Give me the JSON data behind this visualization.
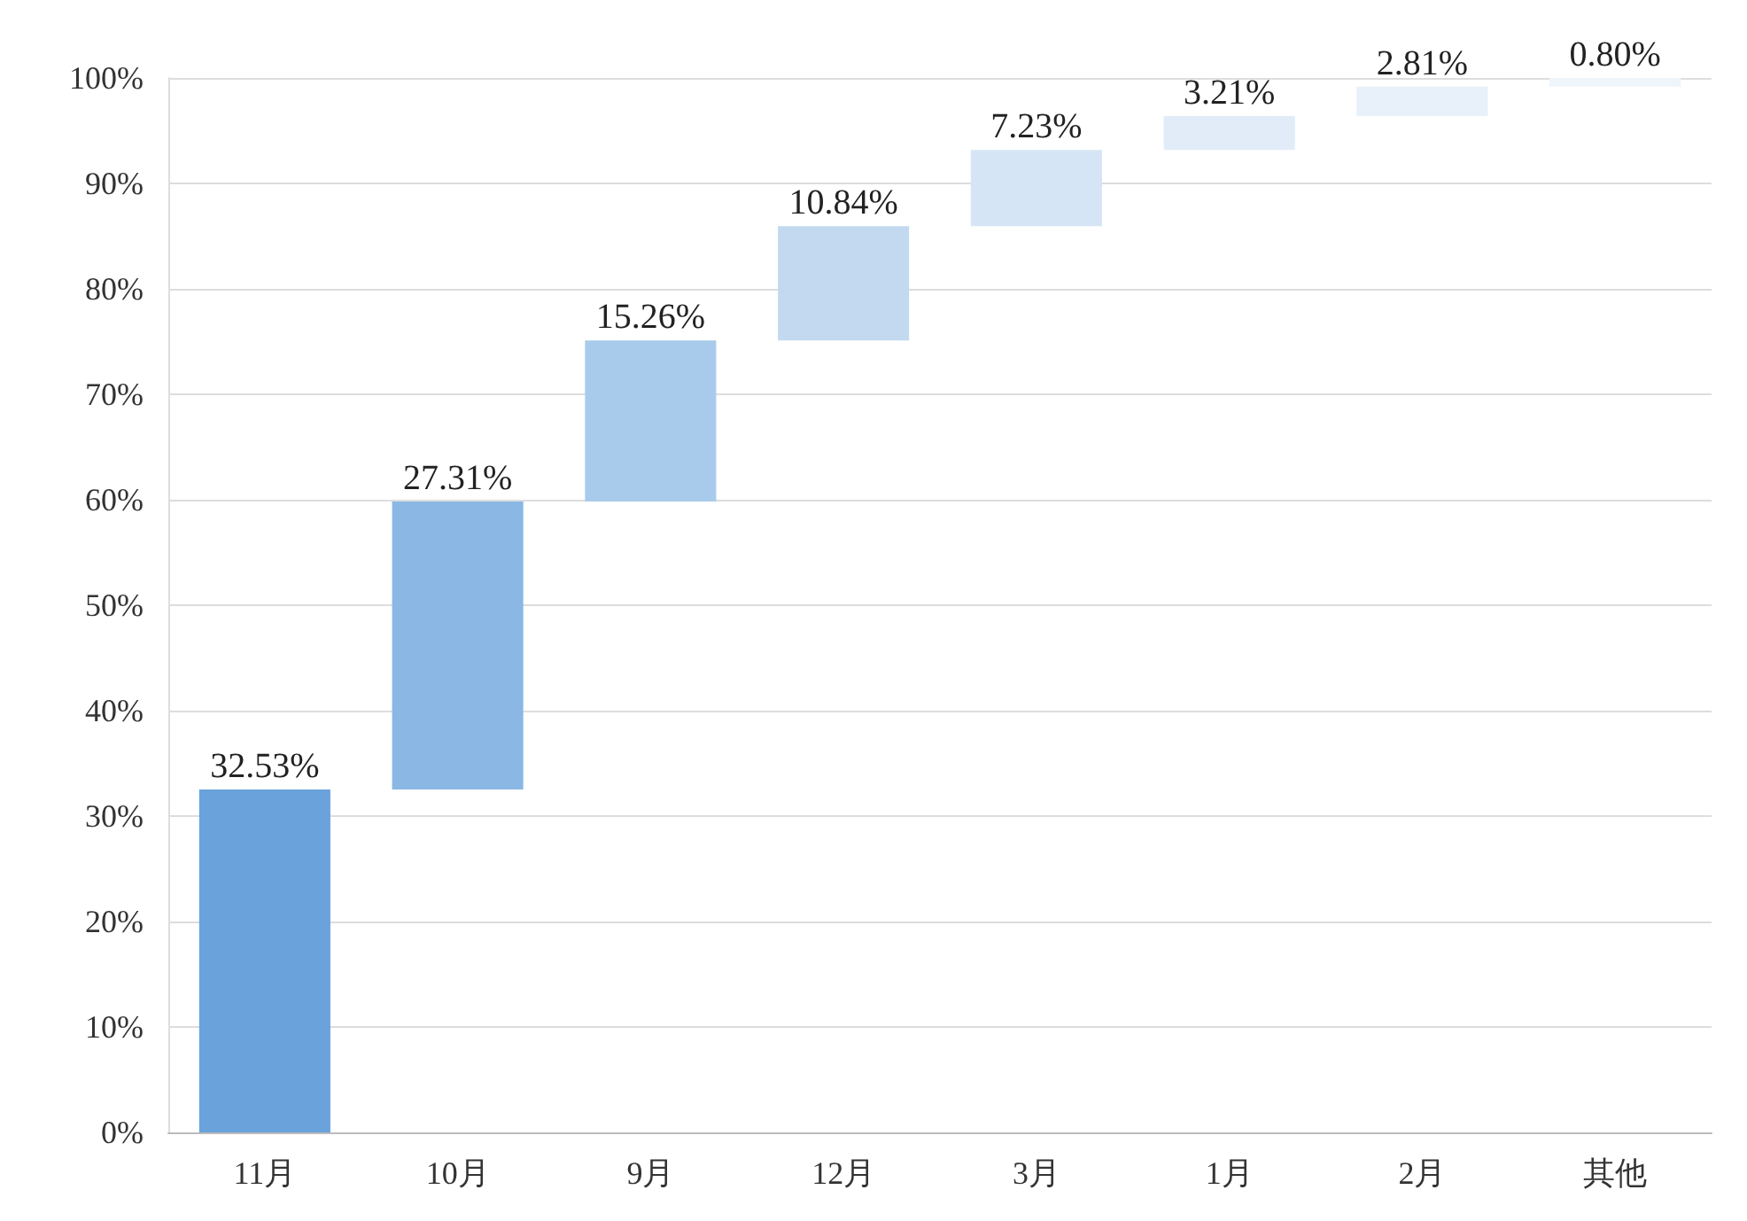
{
  "chart_data": {
    "type": "bar",
    "categories": [
      "11月",
      "10月",
      "9月",
      "12月",
      "3月",
      "1月",
      "2月",
      "其他"
    ],
    "values": [
      32.53,
      27.31,
      15.26,
      10.84,
      7.23,
      3.21,
      2.81,
      0.8
    ],
    "base": [
      0,
      32.53,
      59.84,
      75.1,
      85.94,
      93.17,
      96.38,
      99.19
    ],
    "colors": [
      "#6aa2db",
      "#8ab7e4",
      "#a9cbeb",
      "#c2d9f0",
      "#d5e5f5",
      "#e1ecf8",
      "#e8f1fa",
      "#eef5fb"
    ],
    "value_labels": [
      "32.53%",
      "27.31%",
      "15.26%",
      "10.84%",
      "7.23%",
      "3.21%",
      "2.81%",
      "0.80%"
    ],
    "ylim": [
      0,
      100
    ],
    "yticks": [
      {
        "value": 0,
        "label": "0%"
      },
      {
        "value": 10,
        "label": "10%"
      },
      {
        "value": 20,
        "label": "20%"
      },
      {
        "value": 30,
        "label": "30%"
      },
      {
        "value": 40,
        "label": "40%"
      },
      {
        "value": 50,
        "label": "50%"
      },
      {
        "value": 60,
        "label": "60%"
      },
      {
        "value": 70,
        "label": "70%"
      },
      {
        "value": 80,
        "label": "80%"
      },
      {
        "value": 90,
        "label": "90%"
      },
      {
        "value": 100,
        "label": "100%"
      }
    ],
    "grid": "y"
  }
}
